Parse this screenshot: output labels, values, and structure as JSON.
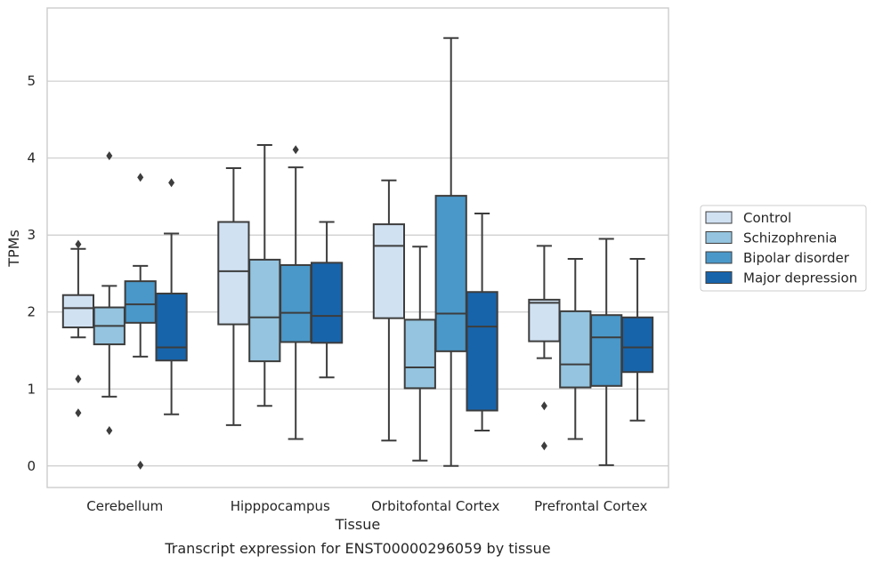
{
  "chart_data": {
    "type": "box",
    "caption": "Transcript expression for ENST00000296059 by tissue",
    "xlabel": "Tissue",
    "ylabel": "TPMs",
    "ylim": [
      -0.28,
      5.95
    ],
    "yticks": [
      0,
      1,
      2,
      3,
      4,
      5
    ],
    "grid": true,
    "legend_position": "right",
    "categories": [
      "Cerebellum",
      "Hipppocampus",
      "Orbitofontal Cortex",
      "Prefrontal Cortex"
    ],
    "series": [
      {
        "name": "Control",
        "color": "#d0e1f2",
        "boxes": [
          {
            "whisker_low": 1.67,
            "q1": 1.8,
            "median": 2.05,
            "q3": 2.22,
            "whisker_high": 2.82,
            "outliers": [
              2.88,
              1.13,
              0.69
            ]
          },
          {
            "whisker_low": 0.53,
            "q1": 1.84,
            "median": 2.53,
            "q3": 3.17,
            "whisker_high": 3.87,
            "outliers": []
          },
          {
            "whisker_low": 0.33,
            "q1": 1.92,
            "median": 2.86,
            "q3": 3.14,
            "whisker_high": 3.71,
            "outliers": []
          },
          {
            "whisker_low": 1.4,
            "q1": 1.62,
            "median": 2.12,
            "q3": 2.16,
            "whisker_high": 2.86,
            "outliers": [
              0.78,
              0.26
            ]
          }
        ]
      },
      {
        "name": "Schizophrenia",
        "color": "#94c4df",
        "boxes": [
          {
            "whisker_low": 0.9,
            "q1": 1.58,
            "median": 1.82,
            "q3": 2.06,
            "whisker_high": 2.34,
            "outliers": [
              4.03,
              0.46
            ]
          },
          {
            "whisker_low": 0.78,
            "q1": 1.36,
            "median": 1.93,
            "q3": 2.68,
            "whisker_high": 4.17,
            "outliers": []
          },
          {
            "whisker_low": 0.07,
            "q1": 1.01,
            "median": 1.28,
            "q3": 1.9,
            "whisker_high": 2.85,
            "outliers": []
          },
          {
            "whisker_low": 0.35,
            "q1": 1.02,
            "median": 1.32,
            "q3": 2.01,
            "whisker_high": 2.69,
            "outliers": []
          }
        ]
      },
      {
        "name": "Bipolar disorder",
        "color": "#4a98c9",
        "boxes": [
          {
            "whisker_low": 1.42,
            "q1": 1.86,
            "median": 2.1,
            "q3": 2.4,
            "whisker_high": 2.6,
            "outliers": [
              3.75,
              0.01
            ]
          },
          {
            "whisker_low": 0.35,
            "q1": 1.61,
            "median": 1.99,
            "q3": 2.61,
            "whisker_high": 3.88,
            "outliers": [
              4.11
            ]
          },
          {
            "whisker_low": 0.0,
            "q1": 1.49,
            "median": 1.98,
            "q3": 3.51,
            "whisker_high": 5.56,
            "outliers": []
          },
          {
            "whisker_low": 0.01,
            "q1": 1.04,
            "median": 1.67,
            "q3": 1.96,
            "whisker_high": 2.95,
            "outliers": []
          }
        ]
      },
      {
        "name": "Major depression",
        "color": "#1764ab",
        "boxes": [
          {
            "whisker_low": 0.67,
            "q1": 1.37,
            "median": 1.54,
            "q3": 2.24,
            "whisker_high": 3.02,
            "outliers": [
              3.68
            ]
          },
          {
            "whisker_low": 1.15,
            "q1": 1.6,
            "median": 1.95,
            "q3": 2.64,
            "whisker_high": 3.17,
            "outliers": []
          },
          {
            "whisker_low": 0.46,
            "q1": 0.72,
            "median": 1.81,
            "q3": 2.26,
            "whisker_high": 3.28,
            "outliers": []
          },
          {
            "whisker_low": 0.59,
            "q1": 1.22,
            "median": 1.54,
            "q3": 1.93,
            "whisker_high": 2.69,
            "outliers": []
          }
        ]
      }
    ]
  }
}
